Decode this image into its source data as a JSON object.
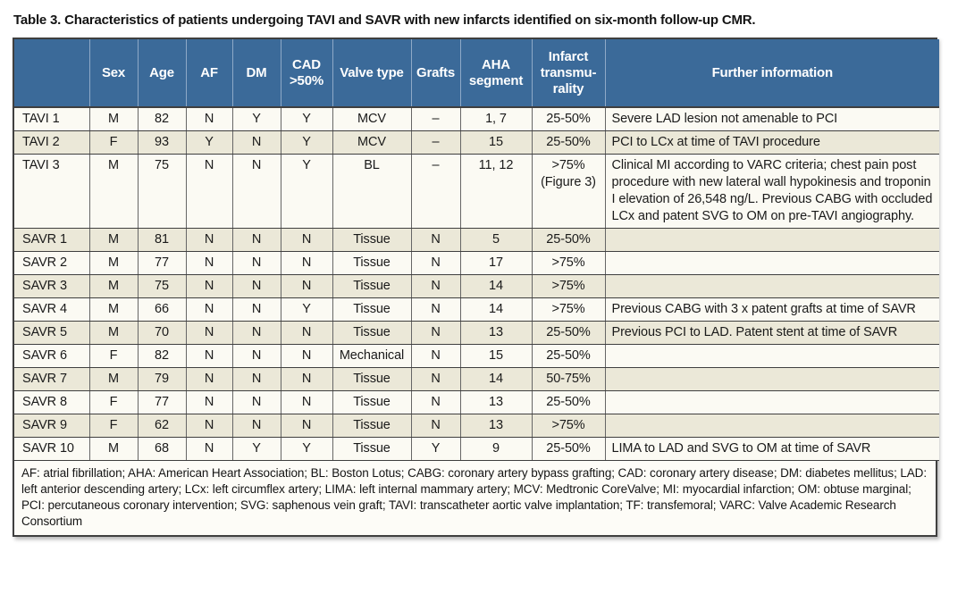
{
  "title": "Table 3. Characteristics of patients undergoing TAVI and SAVR with new infarcts identified on six-month follow-up CMR.",
  "colors": {
    "header_bg": "#3b6a99",
    "header_divider": "#8ea9c7",
    "row_white": "#fbfaf3",
    "row_cream": "#ebe8d8",
    "border_dark": "#3f3f3f",
    "header_text": "#ffffff"
  },
  "table": {
    "columns": [
      "",
      "Sex",
      "Age",
      "AF",
      "DM",
      "CAD >50%",
      "Valve type",
      "Grafts",
      "AHA segment",
      "Infarct transmu-rality",
      "Further information"
    ],
    "column_keys": [
      "id",
      "sex",
      "age",
      "af",
      "dm",
      "cad",
      "valve",
      "grafts",
      "aha",
      "transmurality",
      "info"
    ],
    "rows": [
      {
        "id": "TAVI 1",
        "sex": "M",
        "age": "82",
        "af": "N",
        "dm": "Y",
        "cad": "Y",
        "valve": "MCV",
        "grafts": "–",
        "aha": "1, 7",
        "transmurality": "25-50%",
        "info": "Severe LAD lesion not amenable to PCI"
      },
      {
        "id": "TAVI 2",
        "sex": "F",
        "age": "93",
        "af": "Y",
        "dm": "N",
        "cad": "Y",
        "valve": "MCV",
        "grafts": "–",
        "aha": "15",
        "transmurality": "25-50%",
        "info": "PCI to LCx at time of TAVI procedure"
      },
      {
        "id": "TAVI 3",
        "sex": "M",
        "age": "75",
        "af": "N",
        "dm": "N",
        "cad": "Y",
        "valve": "BL",
        "grafts": "–",
        "aha": "11, 12",
        "transmurality": ">75% (Figure 3)",
        "info": "Clinical MI according to VARC criteria; chest pain post procedure with new lateral wall hypokinesis and troponin I elevation of 26,548 ng/L. Previous CABG with occluded LCx and patent SVG to OM on pre-TAVI angiography."
      },
      {
        "id": "SAVR 1",
        "sex": "M",
        "age": "81",
        "af": "N",
        "dm": "N",
        "cad": "N",
        "valve": "Tissue",
        "grafts": "N",
        "aha": "5",
        "transmurality": "25-50%",
        "info": ""
      },
      {
        "id": "SAVR 2",
        "sex": "M",
        "age": "77",
        "af": "N",
        "dm": "N",
        "cad": "N",
        "valve": "Tissue",
        "grafts": "N",
        "aha": "17",
        "transmurality": ">75%",
        "info": ""
      },
      {
        "id": "SAVR 3",
        "sex": "M",
        "age": "75",
        "af": "N",
        "dm": "N",
        "cad": "N",
        "valve": "Tissue",
        "grafts": "N",
        "aha": "14",
        "transmurality": ">75%",
        "info": ""
      },
      {
        "id": "SAVR 4",
        "sex": "M",
        "age": "66",
        "af": "N",
        "dm": "N",
        "cad": "Y",
        "valve": "Tissue",
        "grafts": "N",
        "aha": "14",
        "transmurality": ">75%",
        "info": "Previous CABG with 3 x patent grafts at time of SAVR"
      },
      {
        "id": "SAVR 5",
        "sex": "M",
        "age": "70",
        "af": "N",
        "dm": "N",
        "cad": "N",
        "valve": "Tissue",
        "grafts": "N",
        "aha": "13",
        "transmurality": "25-50%",
        "info": "Previous PCI to LAD. Patent stent at time of SAVR"
      },
      {
        "id": "SAVR 6",
        "sex": "F",
        "age": "82",
        "af": "N",
        "dm": "N",
        "cad": "N",
        "valve": "Mechanical",
        "grafts": "N",
        "aha": "15",
        "transmurality": "25-50%",
        "info": ""
      },
      {
        "id": "SAVR 7",
        "sex": "M",
        "age": "79",
        "af": "N",
        "dm": "N",
        "cad": "N",
        "valve": "Tissue",
        "grafts": "N",
        "aha": "14",
        "transmurality": "50-75%",
        "info": ""
      },
      {
        "id": "SAVR 8",
        "sex": "F",
        "age": "77",
        "af": "N",
        "dm": "N",
        "cad": "N",
        "valve": "Tissue",
        "grafts": "N",
        "aha": "13",
        "transmurality": "25-50%",
        "info": ""
      },
      {
        "id": "SAVR 9",
        "sex": "F",
        "age": "62",
        "af": "N",
        "dm": "N",
        "cad": "N",
        "valve": "Tissue",
        "grafts": "N",
        "aha": "13",
        "transmurality": ">75%",
        "info": ""
      },
      {
        "id": "SAVR 10",
        "sex": "M",
        "age": "68",
        "af": "N",
        "dm": "Y",
        "cad": "Y",
        "valve": "Tissue",
        "grafts": "Y",
        "aha": "9",
        "transmurality": "25-50%",
        "info": "LIMA to LAD and SVG to OM at time of SAVR"
      }
    ]
  },
  "footnote": "AF: atrial fibrillation; AHA: American Heart Association; BL: Boston Lotus; CABG: coronary artery bypass grafting; CAD: coronary artery disease; DM: diabetes mellitus; LAD: left anterior descending artery; LCx: left circumflex artery; LIMA: left internal mammary artery; MCV: Medtronic CoreValve; MI: myocardial infarction; OM: obtuse marginal; PCI: percutaneous coronary intervention; SVG: saphenous vein graft; TAVI: transcatheter aortic valve implantation; TF: transfemoral; VARC: Valve Academic Research Consortium"
}
